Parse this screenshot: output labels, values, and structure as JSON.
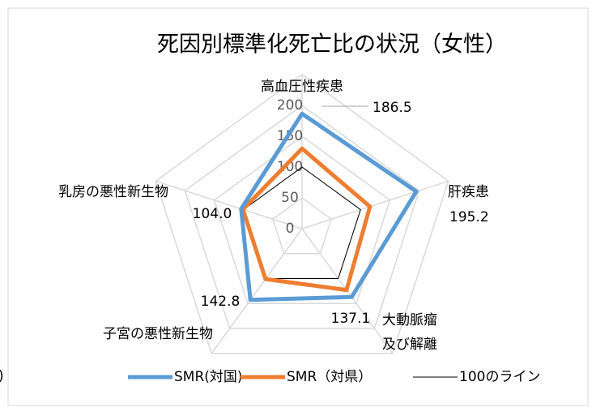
{
  "chart_data": {
    "type": "radar",
    "title": "死因別標準化死亡比の状況（女性）",
    "categories": [
      "高血圧性疾患",
      "肝疾患",
      "大動脈瘤\n及び解離",
      "子宮の悪性新生物",
      "乳房の悪性新生物"
    ],
    "series": [
      {
        "name": "SMR(対国)",
        "color": "#5b9bd5",
        "width": 5,
        "values": [
          186.5,
          195.2,
          137.1,
          142.8,
          104.0
        ],
        "value_labels": [
          "186.5",
          "195.2",
          "137.1",
          "142.8",
          "104.0"
        ]
      },
      {
        "name": "SMR（対県）",
        "color": "#ed7d31",
        "width": 5,
        "values": [
          130,
          116,
          123,
          101,
          101
        ]
      },
      {
        "name": "100のライン",
        "color": "#000000",
        "width": 1,
        "values": [
          100,
          100,
          100,
          100,
          100
        ]
      }
    ],
    "rlim": [
      0,
      250
    ],
    "rticks": [
      0,
      50,
      100,
      150,
      200
    ],
    "grid": true,
    "clipped_text": ")"
  }
}
